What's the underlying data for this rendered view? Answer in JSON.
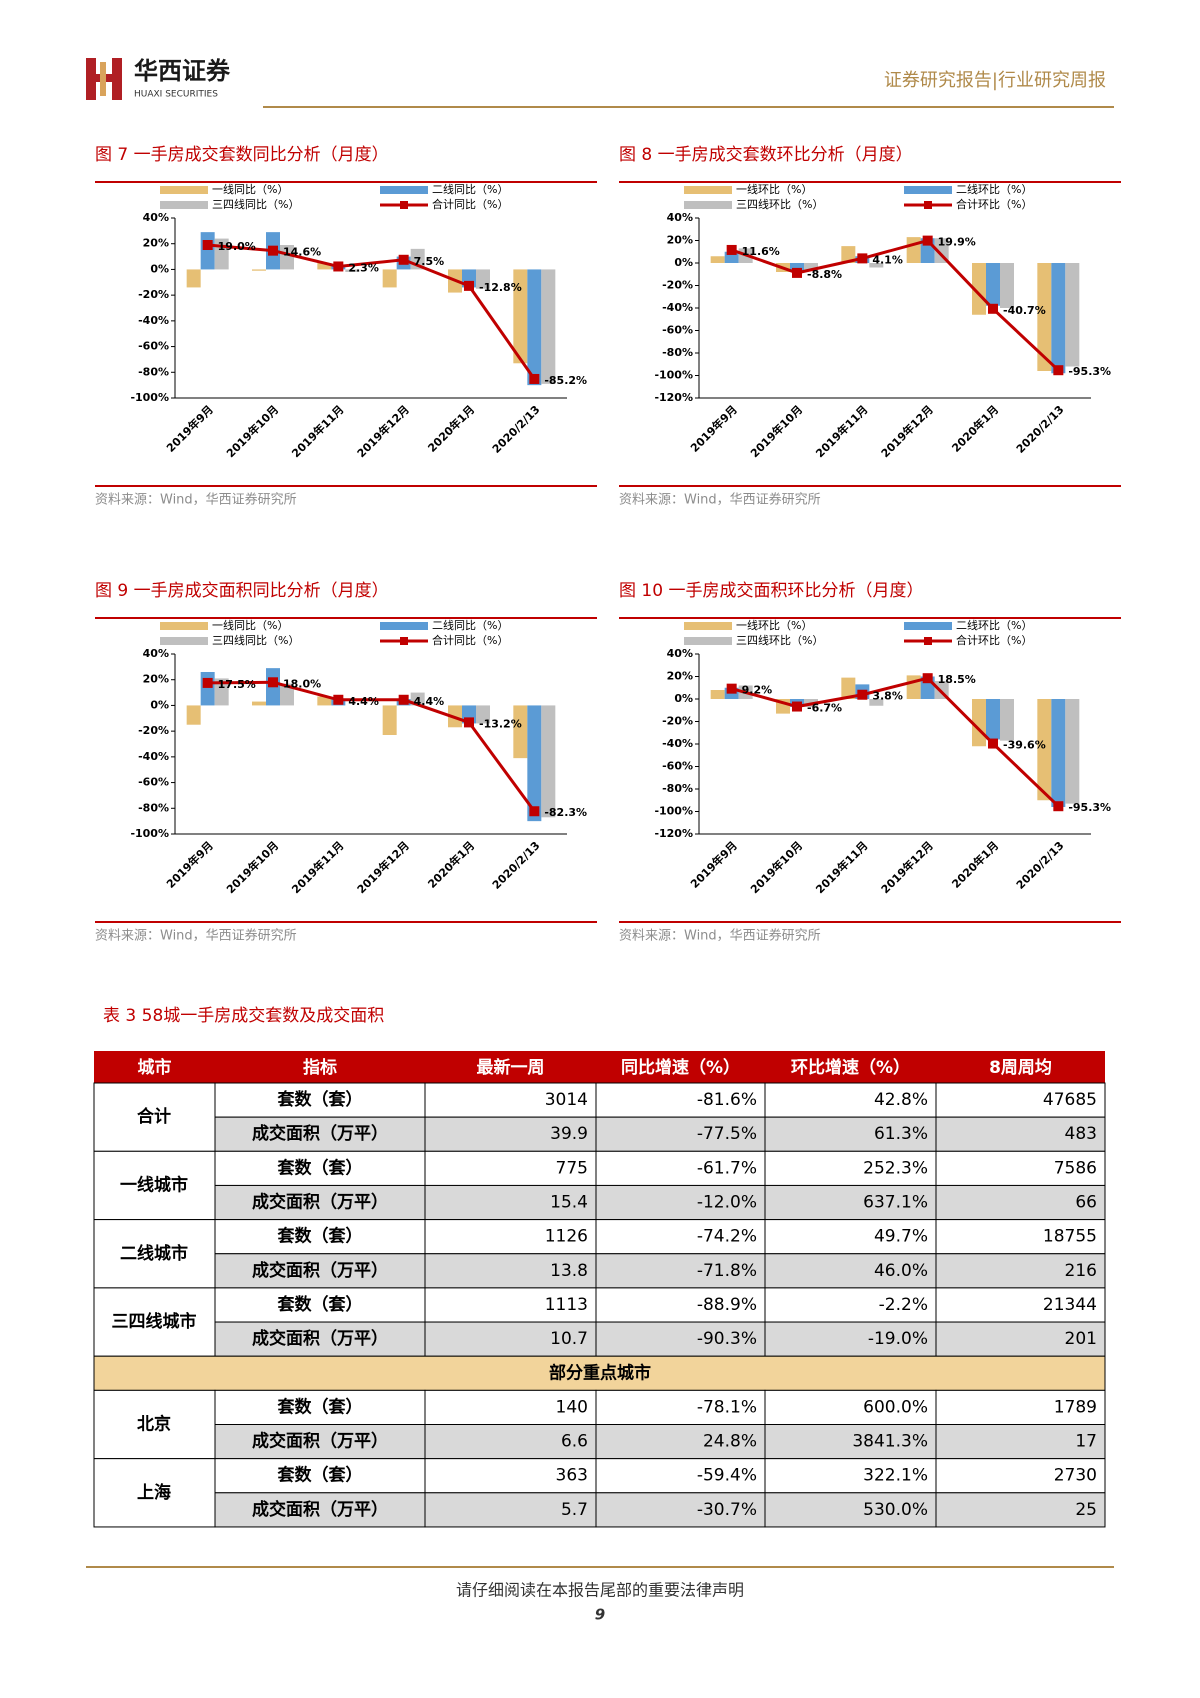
{
  "header": {
    "brand": "华西证券",
    "brand_en": "HUAXI SECURITIES",
    "report_type": "证券研究报告|行业研究周报"
  },
  "chart_data": [
    {
      "type": "bar",
      "title": "图 7 一手房成交套数同比分析（月度）",
      "source": "资料来源：Wind，华西证券研究所",
      "categories": [
        "2019年9月",
        "2019年10月",
        "2019年11月",
        "2019年12月",
        "2020年1月",
        "2020/2/13"
      ],
      "ylim": [
        -100,
        40
      ],
      "yticks": [
        {
          "value": -100,
          "label": "-100%"
        },
        {
          "value": -80,
          "label": "-80%"
        },
        {
          "value": -60,
          "label": "-60%"
        },
        {
          "value": -40,
          "label": "-40%"
        },
        {
          "value": -20,
          "label": "-20%"
        },
        {
          "value": 0,
          "label": "0%"
        },
        {
          "value": 20,
          "label": "20%"
        },
        {
          "value": 40,
          "label": "40%"
        }
      ],
      "series": [
        {
          "name": "一线同比（%）",
          "color": "#e6bf74",
          "values": [
            -14,
            -1,
            5,
            -14,
            -18,
            -73
          ]
        },
        {
          "name": "二线同比（%）",
          "color": "#5b9bd5",
          "values": [
            29,
            29,
            3,
            10,
            -14,
            -90
          ]
        },
        {
          "name": "三四线同比（%）",
          "color": "#bfbfbf",
          "values": [
            24,
            19,
            -2,
            16,
            -15,
            -89
          ]
        },
        {
          "name": "合计同比（%）",
          "color": "#c00000",
          "type": "line",
          "values": [
            19.0,
            14.6,
            2.3,
            7.5,
            -12.8,
            -85.2
          ],
          "value_labels": [
            "19.0%",
            "14.6%",
            "2.3%",
            "7.5%",
            "-12.8%",
            "-85.2%"
          ]
        }
      ]
    },
    {
      "type": "bar",
      "title": "图 8 一手房成交套数环比分析（月度）",
      "source": "资料来源：Wind，华西证券研究所",
      "categories": [
        "2019年9月",
        "2019年10月",
        "2019年11月",
        "2019年12月",
        "2020年1月",
        "2020/2/13"
      ],
      "ylim": [
        -120,
        40
      ],
      "yticks": [
        {
          "value": -120,
          "label": "-120%"
        },
        {
          "value": -100,
          "label": "-100%"
        },
        {
          "value": -80,
          "label": "-80%"
        },
        {
          "value": -60,
          "label": "-60%"
        },
        {
          "value": -40,
          "label": "-40%"
        },
        {
          "value": -20,
          "label": "-20%"
        },
        {
          "value": 0,
          "label": "0%"
        },
        {
          "value": 20,
          "label": "20%"
        },
        {
          "value": 40,
          "label": "40%"
        }
      ],
      "series": [
        {
          "name": "一线环比（%）",
          "color": "#e6bf74",
          "values": [
            6,
            -8,
            15,
            23,
            -46,
            -96
          ]
        },
        {
          "name": "二线环比（%）",
          "color": "#5b9bd5",
          "values": [
            10,
            -7,
            6,
            22,
            -38,
            -98
          ]
        },
        {
          "name": "三四线环比（%）",
          "color": "#bfbfbf",
          "values": [
            13,
            -7,
            -4,
            22,
            -40,
            -92
          ]
        },
        {
          "name": "合计环比（%）",
          "color": "#c00000",
          "type": "line",
          "values": [
            11.6,
            -8.8,
            4.1,
            19.9,
            -40.7,
            -95.3
          ],
          "value_labels": [
            "11.6%",
            "-8.8%",
            "4.1%",
            "19.9%",
            "-40.7%",
            "-95.3%"
          ]
        }
      ]
    },
    {
      "type": "bar",
      "title": "图 9 一手房成交面积同比分析（月度）",
      "source": "资料来源：Wind，华西证券研究所",
      "categories": [
        "2019年9月",
        "2019年10月",
        "2019年11月",
        "2019年12月",
        "2020年1月",
        "2020/2/13"
      ],
      "ylim": [
        -100,
        40
      ],
      "yticks": [
        {
          "value": -100,
          "label": "-100%"
        },
        {
          "value": -80,
          "label": "-80%"
        },
        {
          "value": -60,
          "label": "-60%"
        },
        {
          "value": -40,
          "label": "-40%"
        },
        {
          "value": -20,
          "label": "-20%"
        },
        {
          "value": 0,
          "label": "0%"
        },
        {
          "value": 20,
          "label": "20%"
        },
        {
          "value": 40,
          "label": "40%"
        }
      ],
      "series": [
        {
          "name": "一线同比（%）",
          "color": "#e6bf74",
          "values": [
            -15,
            3,
            7,
            -23,
            -17,
            -41
          ]
        },
        {
          "name": "二线同比（%）",
          "color": "#5b9bd5",
          "values": [
            26,
            29,
            5,
            5,
            -14,
            -90
          ]
        },
        {
          "name": "三四线同比（%）",
          "color": "#bfbfbf",
          "values": [
            21,
            17,
            0,
            10,
            -14,
            -87
          ]
        },
        {
          "name": "合计同比（%）",
          "color": "#c00000",
          "type": "line",
          "values": [
            17.5,
            18.0,
            4.4,
            4.4,
            -13.2,
            -82.3
          ],
          "value_labels": [
            "17.5%",
            "18.0%",
            "4.4%",
            "4.4%",
            "-13.2%",
            "-82.3%"
          ]
        }
      ]
    },
    {
      "type": "bar",
      "title": "图 10 一手房成交面积环比分析（月度）",
      "source": "资料来源：Wind，华西证券研究所",
      "categories": [
        "2019年9月",
        "2019年10月",
        "2019年11月",
        "2019年12月",
        "2020年1月",
        "2020/2/13"
      ],
      "ylim": [
        -120,
        40
      ],
      "yticks": [
        {
          "value": -120,
          "label": "-120%"
        },
        {
          "value": -100,
          "label": "-100%"
        },
        {
          "value": -80,
          "label": "-80%"
        },
        {
          "value": -60,
          "label": "-60%"
        },
        {
          "value": -40,
          "label": "-40%"
        },
        {
          "value": -20,
          "label": "-20%"
        },
        {
          "value": 0,
          "label": "0%"
        },
        {
          "value": 20,
          "label": "20%"
        },
        {
          "value": 40,
          "label": "40%"
        }
      ],
      "series": [
        {
          "name": "一线环比（%）",
          "color": "#e6bf74",
          "values": [
            8,
            -13,
            19,
            21,
            -42,
            -90
          ]
        },
        {
          "name": "二线环比（%）",
          "color": "#5b9bd5",
          "values": [
            10,
            -7,
            13,
            20,
            -36,
            -96
          ]
        },
        {
          "name": "三四线环比（%）",
          "color": "#bfbfbf",
          "values": [
            12,
            -7,
            -6,
            16,
            -37,
            -93
          ]
        },
        {
          "name": "合计环比（%）",
          "color": "#c00000",
          "type": "line",
          "values": [
            9.2,
            -6.7,
            3.8,
            18.5,
            -39.6,
            -95.3
          ],
          "value_labels": [
            "9.2%",
            "-6.7%",
            "3.8%",
            "18.5%",
            "-39.6%",
            "-95.3%"
          ]
        }
      ]
    }
  ],
  "table": {
    "title": "表 3 58城一手房成交套数及成交面积",
    "header": [
      "城市",
      "指标",
      "最新一周",
      "同比增速（%）",
      "环比增速（%）",
      "8周周均"
    ],
    "groups": [
      {
        "city": "合计",
        "rows": [
          [
            "套数（套）",
            "3014",
            "-81.6%",
            "42.8%",
            "47685"
          ],
          [
            "成交面积（万平）",
            "39.9",
            "-77.5%",
            "61.3%",
            "483"
          ]
        ]
      },
      {
        "city": "一线城市",
        "rows": [
          [
            "套数（套）",
            "775",
            "-61.7%",
            "252.3%",
            "7586"
          ],
          [
            "成交面积（万平）",
            "15.4",
            "-12.0%",
            "637.1%",
            "66"
          ]
        ]
      },
      {
        "city": "二线城市",
        "rows": [
          [
            "套数（套）",
            "1126",
            "-74.2%",
            "49.7%",
            "18755"
          ],
          [
            "成交面积（万平）",
            "13.8",
            "-71.8%",
            "46.0%",
            "216"
          ]
        ]
      },
      {
        "city": "三四线城市",
        "rows": [
          [
            "套数（套）",
            "1113",
            "-88.9%",
            "-2.2%",
            "21344"
          ],
          [
            "成交面积（万平）",
            "10.7",
            "-90.3%",
            "-19.0%",
            "201"
          ]
        ]
      }
    ],
    "key_cities": {
      "title": "部分重点城市",
      "groups": [
        {
          "city": "北京",
          "rows": [
            [
              "套数（套）",
              "140",
              "-78.1%",
              "600.0%",
              "1789"
            ],
            [
              "成交面积（万平）",
              "6.6",
              "24.8%",
              "3841.3%",
              "17"
            ]
          ]
        },
        {
          "city": "上海",
          "rows": [
            [
              "套数（套）",
              "363",
              "-59.4%",
              "322.1%",
              "2730"
            ],
            [
              "成交面积（万平）",
              "5.7",
              "-30.7%",
              "530.0%",
              "25"
            ]
          ]
        }
      ]
    }
  },
  "footer": {
    "disclaimer": "请仔细阅读在本报告尾部的重要法律声明",
    "page": "9"
  }
}
